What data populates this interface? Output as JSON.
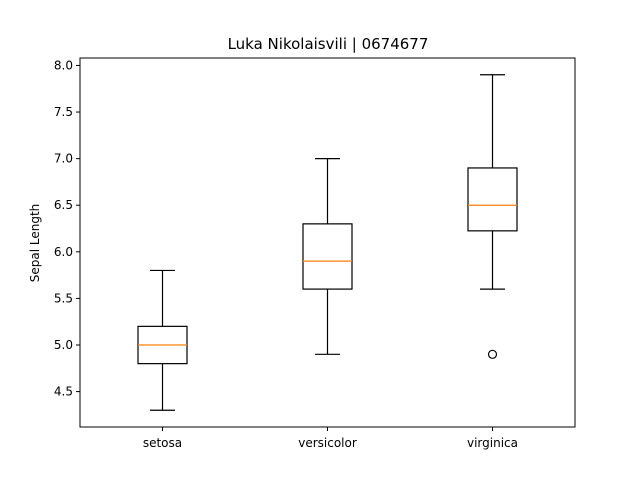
{
  "chart_data": {
    "type": "box",
    "title": "Luka Nikolaisvili | 0674677",
    "xlabel": "",
    "ylabel": "Sepal Length",
    "categories": [
      "setosa",
      "versicolor",
      "virginica"
    ],
    "boxes": [
      {
        "category": "setosa",
        "whisker_low": 4.3,
        "q1": 4.8,
        "median": 5.0,
        "q3": 5.2,
        "whisker_high": 5.8,
        "outliers": []
      },
      {
        "category": "versicolor",
        "whisker_low": 4.9,
        "q1": 5.6,
        "median": 5.9,
        "q3": 6.3,
        "whisker_high": 7.0,
        "outliers": []
      },
      {
        "category": "virginica",
        "whisker_low": 5.6,
        "q1": 6.225,
        "median": 6.5,
        "q3": 6.9,
        "whisker_high": 7.9,
        "outliers": [
          4.9
        ]
      }
    ],
    "yticks": [
      4.5,
      5.0,
      5.5,
      6.0,
      6.5,
      7.0,
      7.5,
      8.0
    ],
    "ytick_labels": [
      "4.5",
      "5.0",
      "5.5",
      "6.0",
      "6.5",
      "7.0",
      "7.5",
      "8.0"
    ],
    "ylim": [
      4.12,
      8.08
    ],
    "grid": false,
    "colors": {
      "box": "#000000",
      "median": "#ff7f0e",
      "outlier": "#000000"
    }
  }
}
